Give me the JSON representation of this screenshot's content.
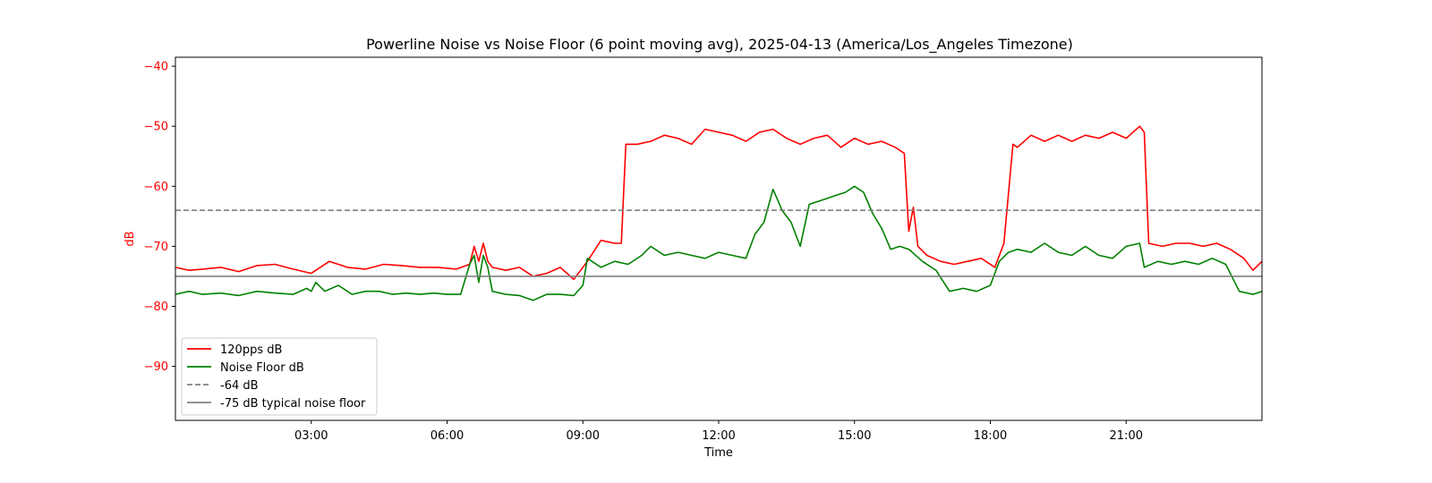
{
  "chart_data": {
    "type": "line",
    "title": "Powerline Noise vs Noise Floor (6 point moving avg), 2025-04-13 (America/Los_Angeles Timezone)",
    "xlabel": "Time",
    "ylabel": "dB",
    "ylabel_color": "#ff0000",
    "x_unit": "hours",
    "xlim": [
      0,
      24
    ],
    "ylim": [
      -99,
      -38.5
    ],
    "x_ticks": [
      3,
      6,
      9,
      12,
      15,
      18,
      21
    ],
    "x_tick_labels": [
      "03:00",
      "06:00",
      "09:00",
      "12:00",
      "15:00",
      "18:00",
      "21:00"
    ],
    "y_ticks": [
      -90,
      -80,
      -70,
      -60,
      -50,
      -40
    ],
    "y_tick_labels": [
      "−90",
      "−80",
      "−70",
      "−60",
      "−50",
      "−40"
    ],
    "grid": false,
    "legend_position": "lower-left",
    "series": [
      {
        "name": "120pps dB",
        "color": "#ff0000",
        "style": "solid",
        "x": [
          0.0,
          0.3,
          0.6,
          1.0,
          1.4,
          1.8,
          2.2,
          2.6,
          3.0,
          3.4,
          3.8,
          4.2,
          4.6,
          5.0,
          5.4,
          5.8,
          6.2,
          6.5,
          6.6,
          6.7,
          6.8,
          6.9,
          7.0,
          7.3,
          7.6,
          7.9,
          8.2,
          8.5,
          8.8,
          9.1,
          9.4,
          9.7,
          9.85,
          9.95,
          10.2,
          10.5,
          10.8,
          11.1,
          11.4,
          11.7,
          12.0,
          12.3,
          12.6,
          12.9,
          13.2,
          13.5,
          13.8,
          14.1,
          14.4,
          14.7,
          15.0,
          15.3,
          15.6,
          15.9,
          16.1,
          16.2,
          16.3,
          16.4,
          16.6,
          16.9,
          17.2,
          17.5,
          17.8,
          18.1,
          18.3,
          18.5,
          18.6,
          18.9,
          19.2,
          19.5,
          19.8,
          20.1,
          20.4,
          20.7,
          21.0,
          21.3,
          21.4,
          21.5,
          21.8,
          22.1,
          22.4,
          22.7,
          23.0,
          23.3,
          23.6,
          23.8,
          24.0
        ],
        "values": [
          -73.5,
          -74.0,
          -73.8,
          -73.5,
          -74.2,
          -73.2,
          -73.0,
          -73.8,
          -74.5,
          -72.5,
          -73.5,
          -73.8,
          -73.0,
          -73.2,
          -73.5,
          -73.5,
          -73.8,
          -73.0,
          -70.0,
          -72.5,
          -69.5,
          -72.5,
          -73.5,
          -74.0,
          -73.5,
          -75.0,
          -74.5,
          -73.5,
          -75.5,
          -72.5,
          -69.0,
          -69.5,
          -69.5,
          -53.0,
          -53.0,
          -52.5,
          -51.5,
          -52.0,
          -53.0,
          -50.5,
          -51.0,
          -51.5,
          -52.5,
          -51.0,
          -50.5,
          -52.0,
          -53.0,
          -52.0,
          -51.5,
          -53.5,
          -52.0,
          -53.0,
          -52.5,
          -53.5,
          -54.5,
          -67.5,
          -63.5,
          -70.0,
          -71.5,
          -72.5,
          -73.0,
          -72.5,
          -72.0,
          -73.5,
          -69.5,
          -53.0,
          -53.5,
          -51.5,
          -52.5,
          -51.5,
          -52.5,
          -51.5,
          -52.0,
          -51.0,
          -52.0,
          -50.0,
          -51.0,
          -69.5,
          -70.0,
          -69.5,
          -69.5,
          -70.0,
          -69.5,
          -70.5,
          -72.0,
          -74.0,
          -72.5
        ]
      },
      {
        "name": "Noise Floor dB",
        "color": "#008000",
        "style": "solid",
        "x": [
          0.0,
          0.3,
          0.6,
          1.0,
          1.4,
          1.8,
          2.2,
          2.6,
          2.9,
          3.0,
          3.1,
          3.3,
          3.6,
          3.9,
          4.2,
          4.5,
          4.8,
          5.1,
          5.4,
          5.7,
          6.0,
          6.3,
          6.5,
          6.6,
          6.7,
          6.8,
          6.9,
          7.0,
          7.3,
          7.6,
          7.9,
          8.2,
          8.5,
          8.8,
          9.0,
          9.1,
          9.2,
          9.4,
          9.7,
          10.0,
          10.3,
          10.5,
          10.8,
          11.1,
          11.4,
          11.7,
          12.0,
          12.3,
          12.6,
          12.8,
          13.0,
          13.2,
          13.4,
          13.6,
          13.8,
          14.0,
          14.2,
          14.4,
          14.6,
          14.8,
          15.0,
          15.2,
          15.4,
          15.6,
          15.8,
          16.0,
          16.2,
          16.5,
          16.8,
          17.1,
          17.4,
          17.7,
          18.0,
          18.2,
          18.4,
          18.6,
          18.9,
          19.2,
          19.5,
          19.8,
          20.1,
          20.4,
          20.7,
          21.0,
          21.3,
          21.4,
          21.7,
          22.0,
          22.3,
          22.6,
          22.9,
          23.2,
          23.5,
          23.8,
          24.0
        ],
        "values": [
          -78.0,
          -77.5,
          -78.0,
          -77.8,
          -78.2,
          -77.5,
          -77.8,
          -78.0,
          -77.0,
          -77.5,
          -76.0,
          -77.5,
          -76.5,
          -78.0,
          -77.5,
          -77.5,
          -78.0,
          -77.8,
          -78.0,
          -77.8,
          -78.0,
          -78.0,
          -73.0,
          -71.5,
          -76.0,
          -71.5,
          -73.5,
          -77.5,
          -78.0,
          -78.2,
          -79.0,
          -78.0,
          -78.0,
          -78.2,
          -76.5,
          -72.0,
          -72.5,
          -73.5,
          -72.5,
          -73.0,
          -71.5,
          -70.0,
          -71.5,
          -71.0,
          -71.5,
          -72.0,
          -71.0,
          -71.5,
          -72.0,
          -68.0,
          -66.0,
          -60.5,
          -64.0,
          -66.0,
          -70.0,
          -63.0,
          -62.5,
          -62.0,
          -61.5,
          -61.0,
          -60.0,
          -61.0,
          -64.5,
          -67.0,
          -70.5,
          -70.0,
          -70.5,
          -72.5,
          -74.0,
          -77.5,
          -77.0,
          -77.5,
          -76.5,
          -72.5,
          -71.0,
          -70.5,
          -71.0,
          -69.5,
          -71.0,
          -71.5,
          -70.0,
          -71.5,
          -72.0,
          -70.0,
          -69.5,
          -73.5,
          -72.5,
          -73.0,
          -72.5,
          -73.0,
          -72.0,
          -73.0,
          -77.5,
          -78.0,
          -77.5
        ]
      },
      {
        "name": "-64 dB",
        "color": "#808080",
        "style": "dashed",
        "x": [
          0,
          24
        ],
        "values": [
          -64,
          -64
        ]
      },
      {
        "name": "-75 dB typical noise floor",
        "color": "#808080",
        "style": "solid",
        "x": [
          0,
          24
        ],
        "values": [
          -75,
          -75
        ]
      }
    ]
  }
}
